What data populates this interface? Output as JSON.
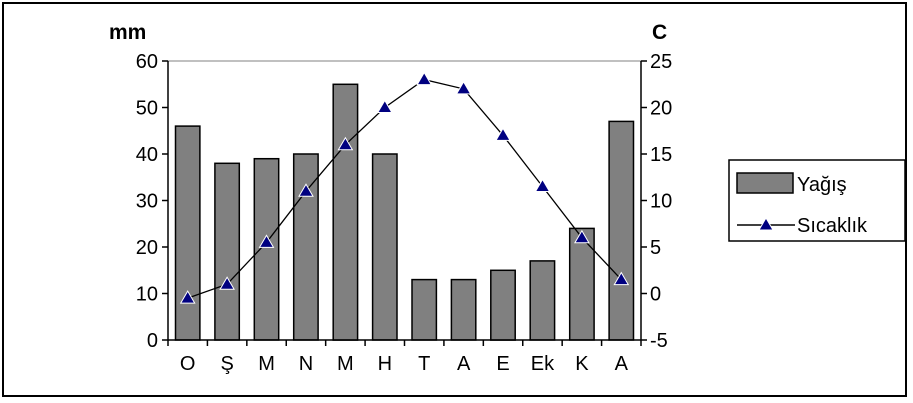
{
  "chart_data": {
    "type": "bar",
    "categories": [
      "O",
      "Ş",
      "M",
      "N",
      "M",
      "H",
      "T",
      "A",
      "E",
      "Ek",
      "K",
      "A"
    ],
    "series": [
      {
        "name": "Yağış",
        "type": "bar",
        "axis": "left",
        "color": "#808080",
        "values": [
          46,
          38,
          39,
          40,
          55,
          40,
          13,
          13,
          15,
          17,
          24,
          47
        ]
      },
      {
        "name": "Sıcaklık",
        "type": "line",
        "axis": "right",
        "color": "#000080",
        "marker": "triangle",
        "values": [
          -0.5,
          1,
          5.5,
          11,
          16,
          20,
          23,
          22,
          17,
          11.5,
          6,
          1.5
        ]
      }
    ],
    "y_left": {
      "label": "mm",
      "range": [
        0,
        60
      ],
      "ticks": [
        "0",
        "10",
        "20",
        "30",
        "40",
        "50",
        "60"
      ]
    },
    "y_right": {
      "label": "C",
      "range": [
        -5,
        25
      ],
      "ticks": [
        "-5",
        "0",
        "5",
        "10",
        "15",
        "20",
        "25"
      ]
    },
    "grid": false,
    "legend": "right"
  }
}
